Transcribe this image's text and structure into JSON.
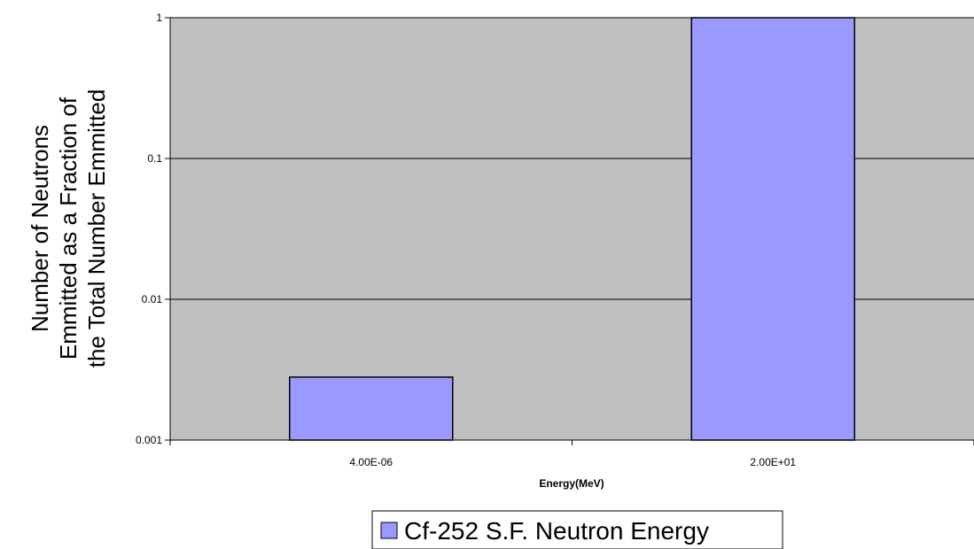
{
  "chart_data": {
    "type": "bar",
    "y_scale": "log",
    "ylim": [
      0.001,
      1
    ],
    "y_ticks": [
      "0.001",
      "0.01",
      "0.1",
      "1"
    ],
    "categories": [
      "4.00E-06",
      "2.00E+01"
    ],
    "series": [
      {
        "name": "Cf-252 S.F. Neutron Energy",
        "values": [
          0.0028,
          1
        ],
        "color": "#9999ff"
      }
    ],
    "xlabel": "Energy(MeV)",
    "ylabel_lines": [
      "Number of Neutrons",
      "Emmitted as a Fraction of",
      "the Total Number Emmitted"
    ],
    "grid": true,
    "plot_background": "#c0c0c0",
    "legend_position": "bottom"
  }
}
